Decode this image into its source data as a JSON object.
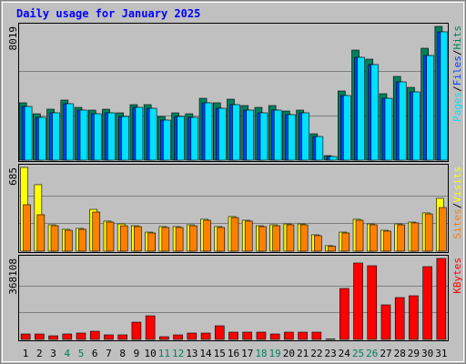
{
  "chart_data": [
    {
      "type": "bar",
      "title": "Daily usage for January 2025",
      "ylim": [
        0,
        8019
      ],
      "yticks": [
        8019
      ],
      "legend_separator": "/",
      "series": [
        {
          "name": "Hits",
          "color": "#00805c",
          "values": [
            3437,
            2782,
            3055,
            3600,
            3164,
            3000,
            3055,
            2837,
            3328,
            3328,
            2618,
            2837,
            2782,
            3709,
            3437,
            3655,
            3273,
            3164,
            3273,
            2946,
            3000,
            1582,
            273,
            4146,
            6600,
            6055,
            3982,
            5019,
            4364,
            6710,
            8019
          ]
        },
        {
          "name": "Files",
          "color": "#0040ff",
          "values": [
            3219,
            2564,
            2837,
            3382,
            3000,
            2782,
            2837,
            2618,
            3164,
            3109,
            2400,
            2618,
            2564,
            3437,
            3109,
            3328,
            3000,
            2837,
            3000,
            2728,
            2837,
            1418,
            218,
            3873,
            6164,
            5728,
            3709,
            4691,
            4091,
            6273,
            7692
          ]
        },
        {
          "name": "Pages",
          "color": "#00e0ff",
          "values": [
            3219,
            2564,
            2837,
            3382,
            3000,
            2782,
            2837,
            2618,
            3164,
            3109,
            2400,
            2618,
            2564,
            3437,
            3109,
            3328,
            3000,
            2837,
            3000,
            2728,
            2837,
            1418,
            218,
            3873,
            6164,
            5728,
            3709,
            4691,
            4091,
            6273,
            7692
          ]
        }
      ]
    },
    {
      "type": "bar",
      "ylim": [
        0,
        685
      ],
      "yticks": [
        685
      ],
      "legend_separator": "/",
      "series": [
        {
          "name": "Visits",
          "color": "#ffff00",
          "values": [
            685,
            544,
            216,
            179,
            186,
            342,
            246,
            223,
            208,
            156,
            201,
            201,
            216,
            261,
            201,
            283,
            253,
            208,
            216,
            223,
            223,
            134,
            45,
            156,
            261,
            223,
            171,
            223,
            238,
            313,
            432
          ]
        },
        {
          "name": "Sites",
          "color": "#ff8000",
          "values": [
            380,
            298,
            208,
            171,
            179,
            320,
            238,
            208,
            201,
            149,
            194,
            194,
            208,
            253,
            194,
            275,
            246,
            201,
            208,
            216,
            216,
            127,
            40,
            149,
            253,
            216,
            164,
            216,
            231,
            305,
            357
          ]
        }
      ]
    },
    {
      "type": "bar",
      "ylim": [
        0,
        368108
      ],
      "yticks": [
        368108
      ],
      "categories": [
        "1",
        "2",
        "3",
        "4",
        "5",
        "6",
        "7",
        "8",
        "9",
        "10",
        "11",
        "12",
        "13",
        "14",
        "15",
        "16",
        "17",
        "18",
        "19",
        "20",
        "21",
        "22",
        "23",
        "24",
        "25",
        "26",
        "27",
        "28",
        "29",
        "30",
        "31"
      ],
      "category_colors": [
        "#000000",
        "#000000",
        "#000000",
        "#00805c",
        "#00805c",
        "#000000",
        "#000000",
        "#000000",
        "#000000",
        "#000000",
        "#00805c",
        "#00805c",
        "#000000",
        "#000000",
        "#000000",
        "#000000",
        "#000000",
        "#00805c",
        "#00805c",
        "#000000",
        "#000000",
        "#000000",
        "#000000",
        "#000000",
        "#00805c",
        "#00805c",
        "#000000",
        "#000000",
        "#000000",
        "#000000",
        "#000000"
      ],
      "series": [
        {
          "name": "KBytes",
          "color": "#ff0000",
          "values": [
            24800,
            24800,
            16500,
            24800,
            29000,
            37200,
            20700,
            20700,
            78600,
            107500,
            12400,
            20700,
            29000,
            29000,
            62000,
            33100,
            33100,
            33100,
            24800,
            33100,
            33100,
            33100,
            2000,
            231600,
            347400,
            335000,
            157200,
            190300,
            198500,
            330900,
            368108
          ]
        }
      ]
    }
  ]
}
